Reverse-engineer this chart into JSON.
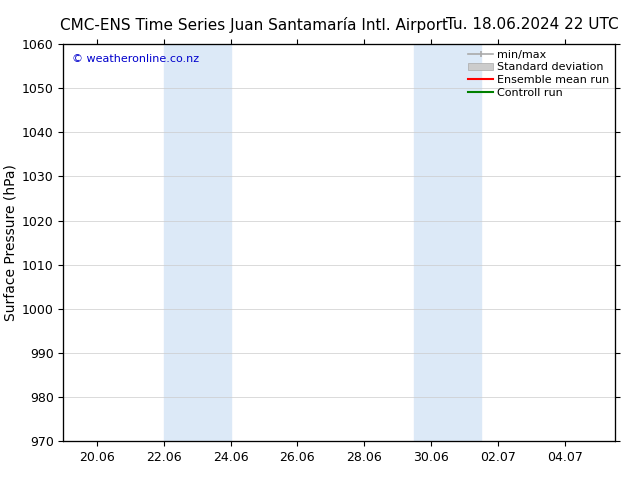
{
  "title_left": "CMC-ENS Time Series Juan Santamaría Intl. Airport",
  "title_right": "Tu. 18.06.2024 22 UTC",
  "ylabel": "Surface Pressure (hPa)",
  "ylim": [
    970,
    1060
  ],
  "yticks": [
    970,
    980,
    990,
    1000,
    1010,
    1020,
    1030,
    1040,
    1050,
    1060
  ],
  "xlabel_ticks": [
    "20.06",
    "22.06",
    "24.06",
    "26.06",
    "28.06",
    "30.06",
    "02.07",
    "04.07"
  ],
  "xtick_days": [
    20,
    22,
    24,
    26,
    28,
    30,
    32,
    34
  ],
  "x_min": 19,
  "x_max": 35.5,
  "band1_x0": 22,
  "band1_x1": 24,
  "band2_x0": 29.5,
  "band2_x1": 31.5,
  "band_color": "#dce9f7",
  "watermark": "© weatheronline.co.nz",
  "watermark_color": "#0000cc",
  "background_color": "#ffffff",
  "plot_bg_color": "#ffffff",
  "grid_color": "#cccccc",
  "axis_color": "#000000",
  "title_fontsize": 11,
  "tick_fontsize": 9,
  "ylabel_fontsize": 10,
  "legend_fontsize": 8,
  "minmax_color": "#aaaaaa",
  "std_color": "#cccccc",
  "ensemble_color": "#ff0000",
  "control_color": "#008000"
}
